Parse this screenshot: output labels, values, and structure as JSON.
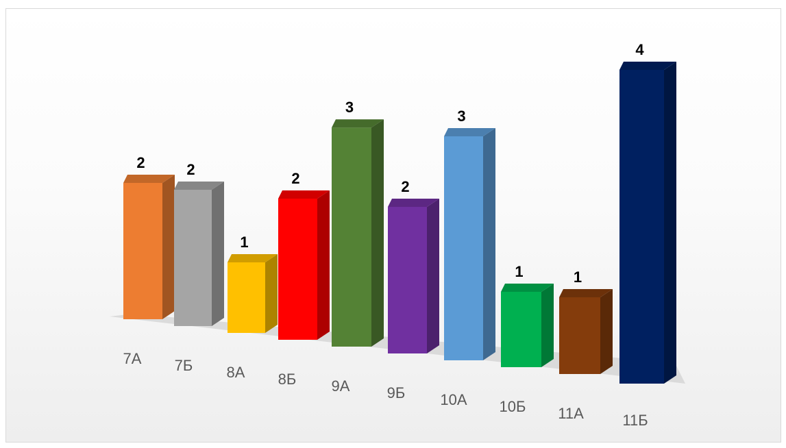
{
  "chart_data": {
    "type": "bar",
    "categories": [
      "7А",
      "7Б",
      "8А",
      "8Б",
      "9А",
      "9Б",
      "10А",
      "10Б",
      "11А",
      "11Б"
    ],
    "values": [
      2,
      2,
      1,
      2,
      3,
      2,
      3,
      1,
      1,
      4
    ],
    "data_labels": [
      "2",
      "2",
      "1",
      "2",
      "3",
      "2",
      "3",
      "1",
      "1",
      "4"
    ],
    "colors": [
      "#ED7D31",
      "#A5A5A5",
      "#FFC000",
      "#FF0000",
      "#548235",
      "#7030A0",
      "#5B9BD5",
      "#00B050",
      "#843C0C",
      "#002060"
    ],
    "legend": "none",
    "grid": false,
    "style": "3d-perspective"
  }
}
